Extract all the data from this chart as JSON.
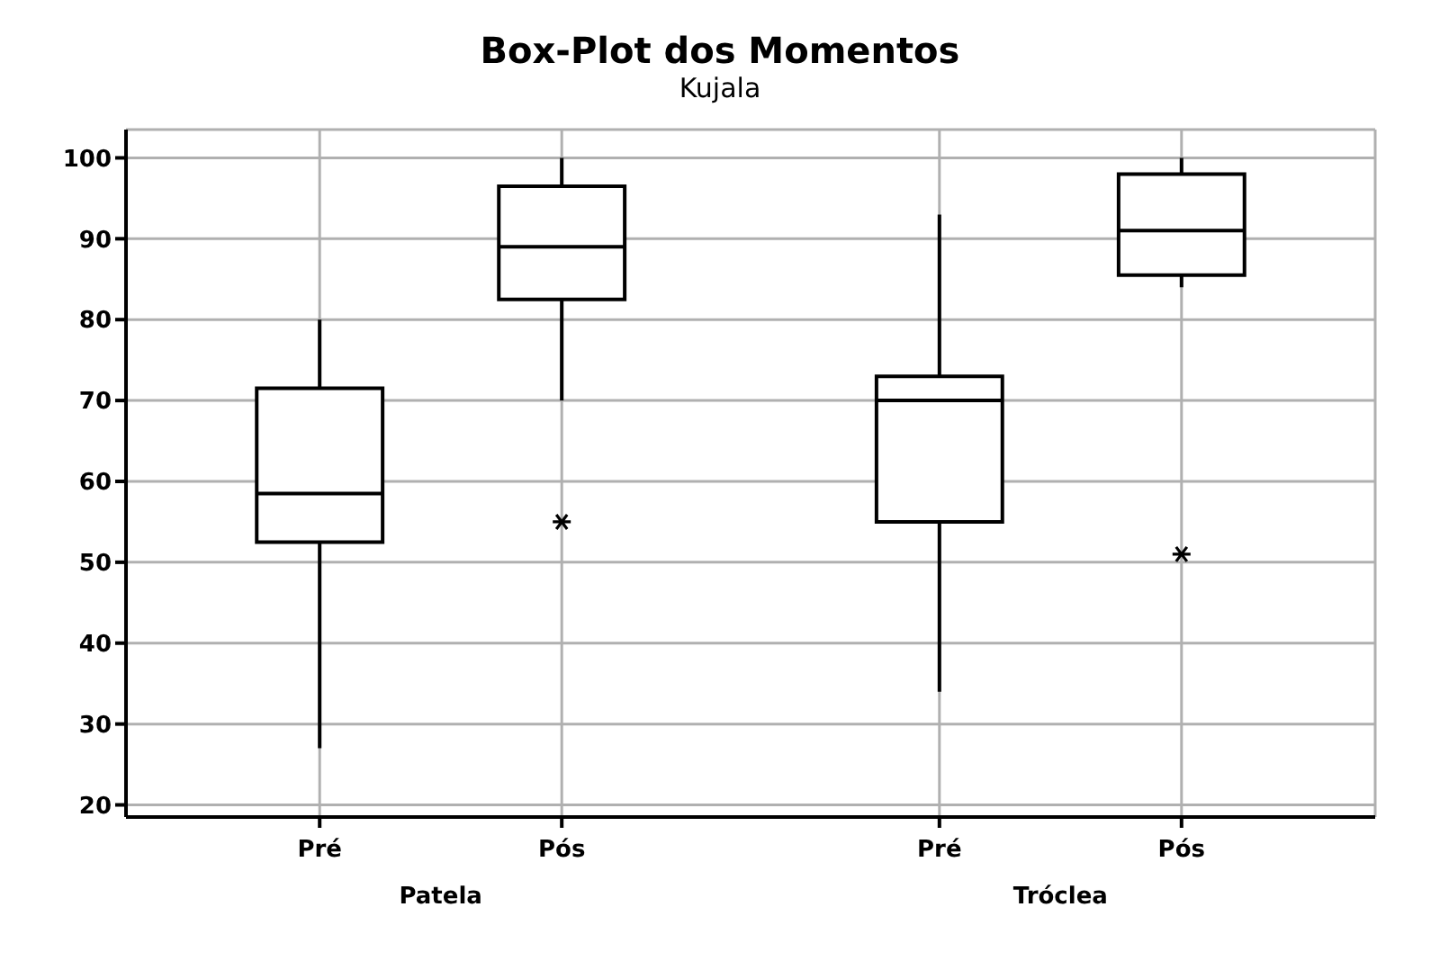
{
  "chart_data": {
    "type": "box",
    "title": "Box-Plot dos Momentos",
    "subtitle": "Kujala",
    "categories": [
      "Pré",
      "Pós",
      "Pré",
      "Pós"
    ],
    "annotations": [
      "Patela",
      "Tróclea"
    ],
    "boxes": [
      {
        "low": 27,
        "q1": 52.5,
        "median": 58.5,
        "q3": 71.5,
        "high": 80
      },
      {
        "low": 70,
        "q1": 82.5,
        "median": 89,
        "q3": 96.5,
        "high": 100,
        "outliers": [
          55
        ]
      },
      {
        "low": 34,
        "q1": 55,
        "median": 70,
        "q3": 73,
        "high": 93
      },
      {
        "low": 84,
        "q1": 85.5,
        "median": 91,
        "q3": 98,
        "high": 100,
        "outliers": [
          51
        ]
      }
    ],
    "ylim": [
      18.5,
      103.5
    ],
    "yticks": [
      20,
      30,
      40,
      50,
      60,
      70,
      80,
      90,
      100
    ],
    "grid": true
  }
}
